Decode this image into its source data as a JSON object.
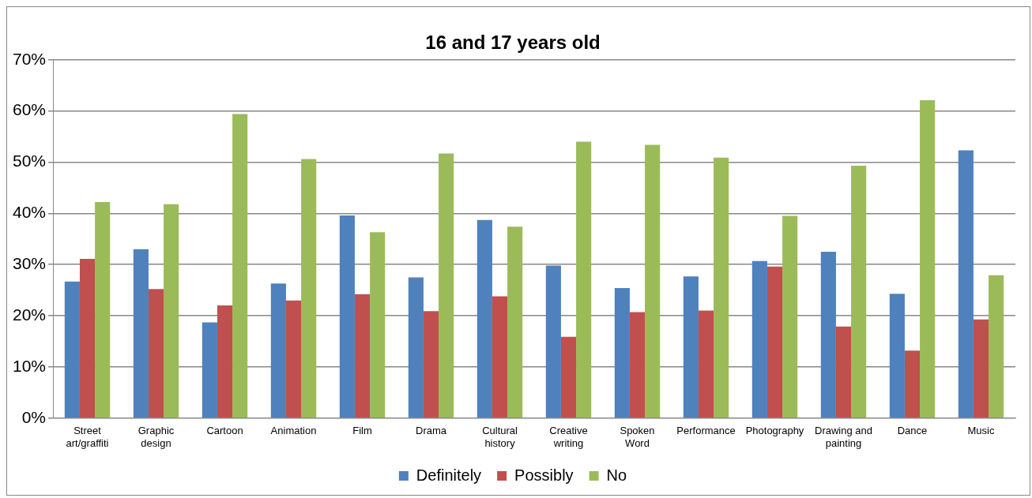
{
  "chart_data": {
    "type": "bar",
    "title": "16 and 17 years old",
    "categories": [
      "Street art/graffiti",
      "Graphic design",
      "Cartoon",
      "Animation",
      "Film",
      "Drama",
      "Cultural history",
      "Creative writing",
      "Spoken Word",
      "Performance",
      "Photography",
      "Drawing and painting",
      "Dance",
      "Music"
    ],
    "series": [
      {
        "name": "Definitely",
        "color": "#4f81bd",
        "values": [
          26.7,
          33.0,
          18.7,
          26.3,
          39.6,
          27.5,
          38.7,
          29.8,
          25.4,
          27.7,
          30.7,
          32.5,
          24.3,
          52.3
        ]
      },
      {
        "name": "Possibly",
        "color": "#c0504d",
        "values": [
          31.1,
          25.2,
          22.0,
          23.0,
          24.2,
          20.9,
          23.8,
          15.9,
          20.7,
          21.0,
          29.6,
          17.9,
          13.2,
          19.3
        ]
      },
      {
        "name": "No",
        "color": "#9bbb59",
        "values": [
          42.2,
          41.8,
          59.4,
          50.6,
          36.3,
          51.7,
          37.4,
          54.0,
          53.4,
          50.9,
          39.5,
          49.3,
          62.1,
          27.9
        ]
      }
    ],
    "ylim": [
      0,
      70
    ],
    "yticks": [
      {
        "value": 0,
        "label": "0%"
      },
      {
        "value": 10,
        "label": "10%"
      },
      {
        "value": 20,
        "label": "20%"
      },
      {
        "value": 30,
        "label": "30%"
      },
      {
        "value": 40,
        "label": "40%"
      },
      {
        "value": 50,
        "label": "50%"
      },
      {
        "value": 60,
        "label": "60%"
      },
      {
        "value": 70,
        "label": "70%"
      }
    ],
    "grid": "y",
    "legend": "bottom"
  }
}
